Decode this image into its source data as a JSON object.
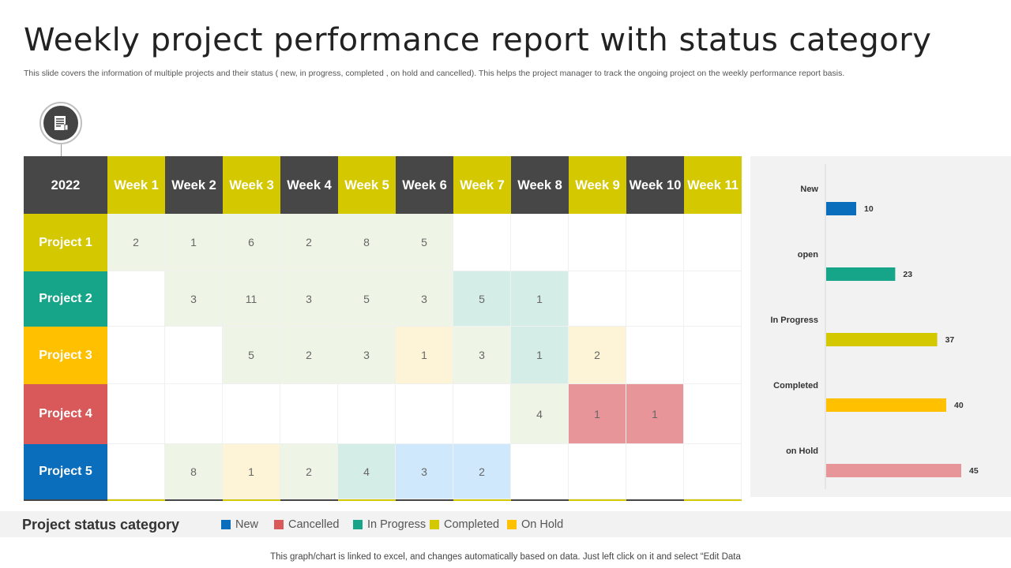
{
  "title": "Weekly project performance report with status category",
  "subtitle": "This slide covers the information of multiple  projects and their status ( new, in progress, completed , on hold and cancelled). This helps the project manager to track the ongoing project on the weekly performance report basis.",
  "table": {
    "corner": "2022",
    "weeks": [
      "Week 1",
      "Week 2",
      "Week 3",
      "Week 4",
      "Week 5",
      "Week 6",
      "Week 7",
      "Week 8",
      "Week 9",
      "Week 10",
      "Week 11"
    ],
    "rows": [
      {
        "label": "Project 1",
        "color": "#d4c800",
        "values": [
          "2",
          "1",
          "6",
          "2",
          "8",
          "5",
          "",
          "",
          "",
          "",
          ""
        ]
      },
      {
        "label": "Project 2",
        "color": "#17a589",
        "values": [
          "",
          "3",
          "11",
          "3",
          "5",
          "3",
          "5",
          "1",
          "",
          "",
          ""
        ]
      },
      {
        "label": "Project 3",
        "color": "#ffc000",
        "values": [
          "",
          "",
          "5",
          "2",
          "3",
          "1",
          "3",
          "1",
          "2",
          "",
          ""
        ]
      },
      {
        "label": "Project 4",
        "color": "#d9595b",
        "values": [
          "",
          "",
          "",
          "",
          "",
          "",
          "",
          "4",
          "1",
          "1",
          ""
        ]
      },
      {
        "label": "Project 5",
        "color": "#0a6ebd",
        "values": [
          "",
          "8",
          "1",
          "2",
          "4",
          "3",
          "2",
          "",
          "",
          "",
          ""
        ]
      }
    ]
  },
  "chart_data": {
    "type": "bar",
    "orientation": "horizontal",
    "categories": [
      "New",
      "open",
      "In Progress",
      "Completed",
      "on Hold"
    ],
    "values": [
      10,
      23,
      37,
      40,
      45
    ],
    "colors": [
      "#0a6ebd",
      "#17a589",
      "#d4c800",
      "#ffc000",
      "#e8959a"
    ],
    "xlim": [
      0,
      50
    ]
  },
  "legend": {
    "title": "Project status category",
    "items": [
      {
        "label": "New",
        "color": "#0a6ebd"
      },
      {
        "label": "Cancelled",
        "color": "#d9595b"
      },
      {
        "label": "In Progress",
        "color": "#17a589"
      },
      {
        "label": "Completed",
        "color": "#d4c800"
      },
      {
        "label": "On Hold",
        "color": "#ffc000"
      }
    ]
  },
  "footer": "This graph/chart is linked to excel,  and changes automatically based on data. Just left click on it and select “Edit Data",
  "icon": "report-document-icon"
}
